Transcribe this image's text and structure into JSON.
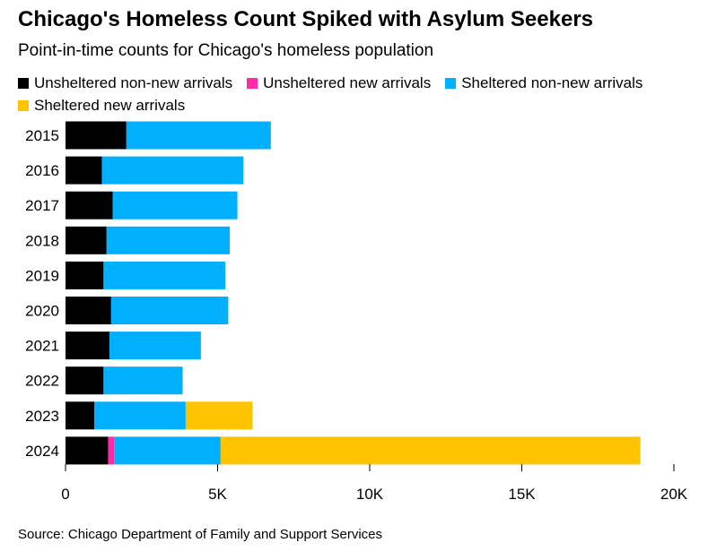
{
  "title": "Chicago's Homeless Count Spiked with Asylum Seekers",
  "subtitle": "Point-in-time counts for Chicago's homeless population",
  "source": "Source: Chicago Department of Family and Support Services",
  "chart_data": {
    "type": "bar",
    "orientation": "horizontal",
    "stacked": true,
    "categories": [
      "2015",
      "2016",
      "2017",
      "2018",
      "2019",
      "2020",
      "2021",
      "2022",
      "2023",
      "2024"
    ],
    "series": [
      {
        "name": "Unsheltered non-new arrivals",
        "color": "#000000",
        "values": [
          2000,
          1200,
          1550,
          1350,
          1250,
          1500,
          1450,
          1250,
          950,
          1400
        ]
      },
      {
        "name": "Unsheltered new arrivals",
        "color": "#ff2aa5",
        "values": [
          0,
          0,
          0,
          0,
          0,
          0,
          0,
          0,
          0,
          200
        ]
      },
      {
        "name": "Sheltered non-new arrivals",
        "color": "#00b0ff",
        "values": [
          4750,
          4650,
          4100,
          4050,
          4000,
          3850,
          3000,
          2600,
          3000,
          3500
        ]
      },
      {
        "name": "Sheltered new arrivals",
        "color": "#ffc400",
        "values": [
          0,
          0,
          0,
          0,
          0,
          0,
          0,
          0,
          2200,
          13800
        ]
      }
    ],
    "xlim": [
      0,
      20000
    ],
    "xticks": [
      0,
      5000,
      10000,
      15000,
      20000
    ],
    "xtick_labels": [
      "0",
      "5K",
      "10K",
      "15K",
      "20K"
    ],
    "grid": false,
    "legend_position": "top-left"
  }
}
